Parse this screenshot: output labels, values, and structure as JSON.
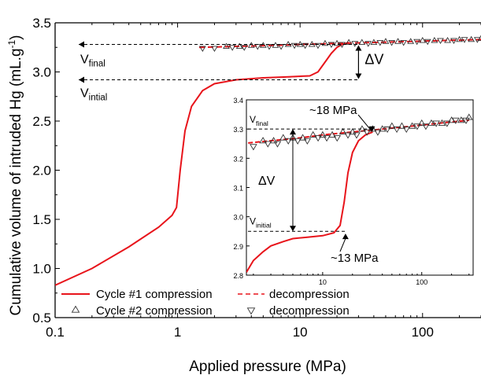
{
  "chart_data": [
    {
      "type": "line",
      "title": "",
      "xlabel": "Applied pressure (MPa)",
      "ylabel": "Cumulative volume of intruded Hg (mL.g",
      "ylabel_sup": "-1",
      "ylabel_close": ")",
      "xscale": "log",
      "xlim": [
        0.1,
        300
      ],
      "ylim": [
        0.5,
        3.5
      ],
      "xticks": [
        {
          "value": 0.1,
          "label": "0.1"
        },
        {
          "value": 1,
          "label": "1"
        },
        {
          "value": 10,
          "label": "10"
        },
        {
          "value": 100,
          "label": "100"
        }
      ],
      "yticks": [
        {
          "value": 0.5,
          "label": "0.5"
        },
        {
          "value": 1.0,
          "label": "1.0"
        },
        {
          "value": 1.5,
          "label": "1.5"
        },
        {
          "value": 2.0,
          "label": "2.0"
        },
        {
          "value": 2.5,
          "label": "2.5"
        },
        {
          "value": 3.0,
          "label": "3.0"
        },
        {
          "value": 3.5,
          "label": "3.5"
        }
      ],
      "series": [
        {
          "name": "Cycle #1 compression",
          "style": "solid",
          "color": "#e8141b",
          "x": [
            0.1,
            0.2,
            0.4,
            0.7,
            0.9,
            0.98,
            1.05,
            1.15,
            1.3,
            1.6,
            2.0,
            3.0,
            5.0,
            8.0,
            12.0,
            14.0,
            16.0,
            18.0,
            20.0,
            22.0,
            25.0
          ],
          "y": [
            0.83,
            1.0,
            1.22,
            1.42,
            1.54,
            1.62,
            2.0,
            2.4,
            2.65,
            2.81,
            2.88,
            2.92,
            2.94,
            2.95,
            2.96,
            3.0,
            3.1,
            3.19,
            3.25,
            3.28,
            3.3
          ]
        },
        {
          "name": "decompression",
          "style": "dashed",
          "color": "#e8141b",
          "x": [
            1.5,
            3,
            6,
            10,
            20,
            40,
            80,
            150,
            300
          ],
          "y": [
            3.25,
            3.26,
            3.27,
            3.28,
            3.29,
            3.3,
            3.31,
            3.32,
            3.33
          ]
        },
        {
          "name": "Cycle #2 compression",
          "marker": "triangle-up",
          "color": "#333333",
          "x": [
            2.5,
            3.2,
            4,
            5,
            6.3,
            8,
            10,
            12.5,
            16,
            20,
            25,
            32,
            40,
            50,
            63,
            80,
            100,
            125,
            160,
            200,
            250,
            300
          ],
          "y": [
            3.26,
            3.26,
            3.27,
            3.27,
            3.27,
            3.28,
            3.28,
            3.28,
            3.29,
            3.29,
            3.3,
            3.3,
            3.3,
            3.31,
            3.31,
            3.31,
            3.32,
            3.32,
            3.32,
            3.33,
            3.33,
            3.34
          ]
        },
        {
          "name": "decompression",
          "marker": "triangle-down",
          "color": "#333333",
          "x": [
            1.6,
            2,
            2.8,
            3.5,
            4.5,
            5.6,
            7,
            9,
            11,
            14,
            18,
            22,
            28,
            36,
            45,
            56,
            70,
            90,
            110,
            140,
            180,
            220,
            280
          ],
          "y": [
            3.24,
            3.24,
            3.25,
            3.25,
            3.26,
            3.26,
            3.26,
            3.27,
            3.27,
            3.27,
            3.28,
            3.28,
            3.29,
            3.29,
            3.3,
            3.3,
            3.3,
            3.31,
            3.31,
            3.32,
            3.32,
            3.33,
            3.33
          ]
        }
      ],
      "legend": {
        "placement": "bottom-left",
        "cols": 2,
        "entries": [
          "Cycle #1 compression",
          "decompression",
          "Cycle #2 compression",
          "decompression"
        ]
      },
      "annotations": {
        "v_final": {
          "label": "V",
          "sub": "final",
          "y": 3.28
        },
        "v_initial": {
          "label": "V",
          "sub": "intial",
          "y": 2.92
        },
        "delta_v": {
          "label": "ΔV",
          "x": 30
        }
      }
    },
    {
      "type": "line",
      "title": "",
      "xscale": "log",
      "xlim": [
        1.7,
        330
      ],
      "ylim": [
        2.8,
        3.4
      ],
      "xticks": [
        {
          "value": 10,
          "label": "10"
        },
        {
          "value": 100,
          "label": "100"
        }
      ],
      "yticks": [
        {
          "value": 2.8,
          "label": "2.8"
        },
        {
          "value": 2.9,
          "label": "2.9"
        },
        {
          "value": 3.0,
          "label": "3.0"
        },
        {
          "value": 3.1,
          "label": "3.1"
        },
        {
          "value": 3.2,
          "label": "3.2"
        },
        {
          "value": 3.3,
          "label": "3.3"
        },
        {
          "value": 3.4,
          "label": "3.4"
        }
      ],
      "annotations": {
        "v_final": {
          "label": "V",
          "sub": "final",
          "y": 3.3
        },
        "v_initial": {
          "label": "V",
          "sub": "initial",
          "y": 2.95
        },
        "delta_v": {
          "label": "ΔV",
          "x": 5
        },
        "p_high": {
          "label": "~18 MPa",
          "x": 32,
          "y": 3.285
        },
        "p_low": {
          "label": "~13 MPa",
          "x": 17,
          "y": 2.945
        }
      }
    }
  ]
}
